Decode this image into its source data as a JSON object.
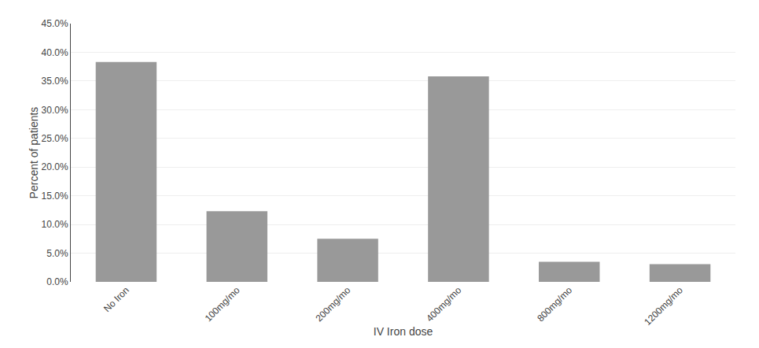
{
  "chart_data": {
    "type": "bar",
    "categories": [
      "No Iron",
      "100mg/mo",
      "200mg/mo",
      "400mg/mo",
      "800mg/mo",
      "1200mg/mo"
    ],
    "values": [
      38.3,
      12.3,
      7.5,
      35.8,
      3.5,
      3.1
    ],
    "color": "#999999",
    "xlabel": "IV Iron dose",
    "ylabel": "Percent of patients",
    "ylim": [
      0,
      45.0
    ],
    "yticks": [
      {
        "value": 0.0,
        "label": "0.0%"
      },
      {
        "value": 5.0,
        "label": "5.0%"
      },
      {
        "value": 10.0,
        "label": "10.0%"
      },
      {
        "value": 15.0,
        "label": "15.0%"
      },
      {
        "value": 20.0,
        "label": "20.0%"
      },
      {
        "value": 25.0,
        "label": "25.0%"
      },
      {
        "value": 30.0,
        "label": "30.0%"
      },
      {
        "value": 35.0,
        "label": "35.0%"
      },
      {
        "value": 40.0,
        "label": "40.0%"
      },
      {
        "value": 45.0,
        "label": "45.0%"
      }
    ],
    "grid": true
  }
}
